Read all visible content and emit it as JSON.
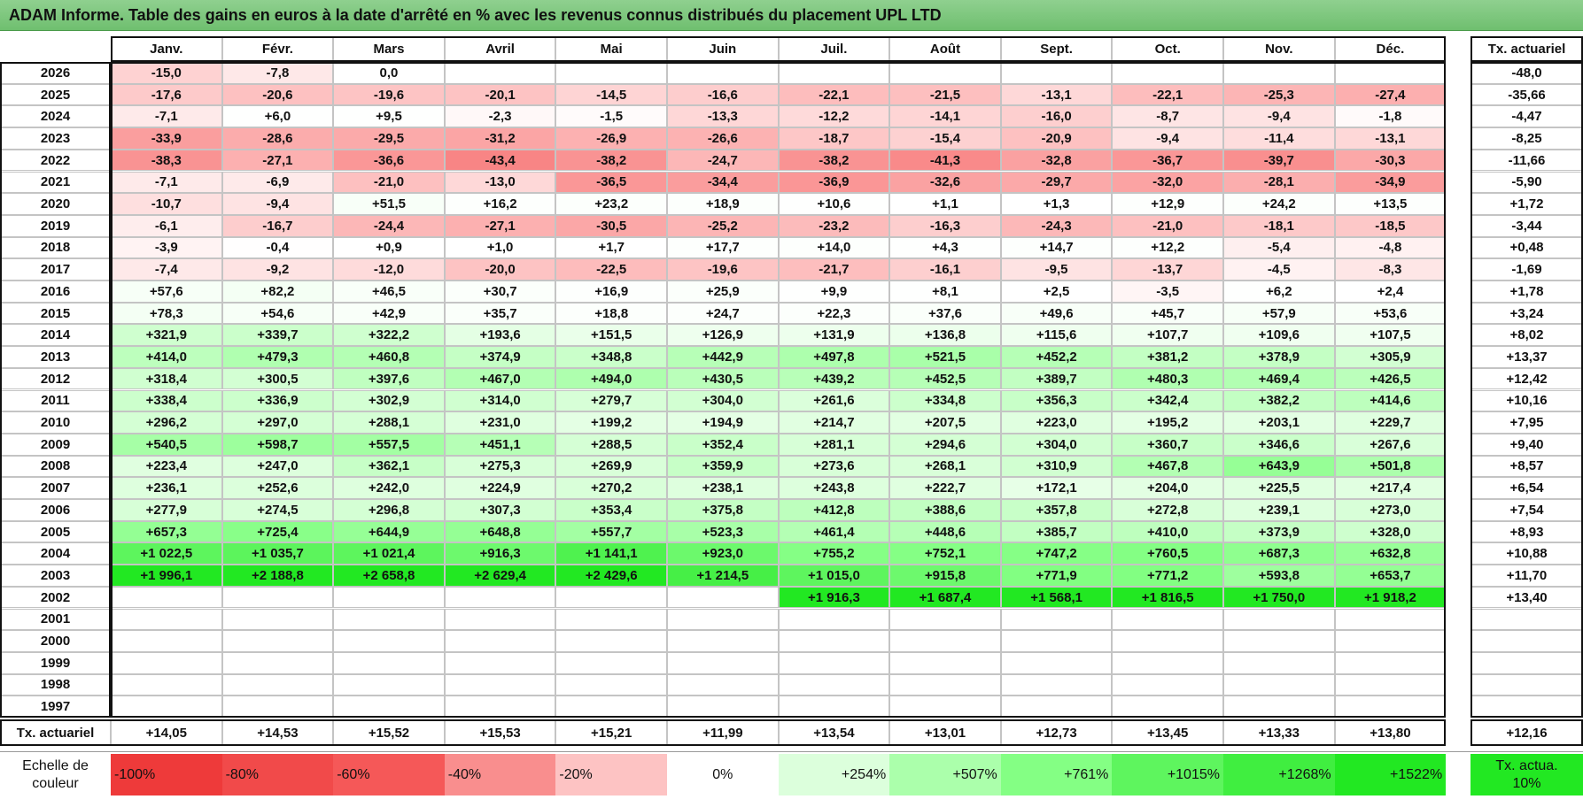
{
  "header": {
    "title": "ADAM Informe. Table des gains en euros à la date d'arrêté en % avec les revenus connus distribués du placement UPL LTD"
  },
  "table": {
    "columns": [
      "Janv.",
      "Févr.",
      "Mars",
      "Avril",
      "Mai",
      "Juin",
      "Juil.",
      "Août",
      "Sept.",
      "Oct.",
      "Nov.",
      "Déc."
    ],
    "rate_column": "Tx. actuariel",
    "rows": [
      {
        "year": "2026",
        "cells": [
          "-15,0",
          "-7,8",
          "0,0",
          null,
          null,
          null,
          null,
          null,
          null,
          null,
          null,
          null
        ],
        "rate": "-48,0"
      },
      {
        "year": "2025",
        "cells": [
          "-17,6",
          "-20,6",
          "-19,6",
          "-20,1",
          "-14,5",
          "-16,6",
          "-22,1",
          "-21,5",
          "-13,1",
          "-22,1",
          "-25,3",
          "-27,4"
        ],
        "rate": "-35,66"
      },
      {
        "year": "2024",
        "cells": [
          "-7,1",
          "+6,0",
          "+9,5",
          "-2,3",
          "-1,5",
          "-13,3",
          "-12,2",
          "-14,1",
          "-16,0",
          "-8,7",
          "-9,4",
          "-1,8"
        ],
        "rate": "-4,47"
      },
      {
        "year": "2023",
        "cells": [
          "-33,9",
          "-28,6",
          "-29,5",
          "-31,2",
          "-26,9",
          "-26,6",
          "-18,7",
          "-15,4",
          "-20,9",
          "-9,4",
          "-11,4",
          "-13,1"
        ],
        "rate": "-8,25"
      },
      {
        "year": "2022",
        "cells": [
          "-38,3",
          "-27,1",
          "-36,6",
          "-43,4",
          "-38,2",
          "-24,7",
          "-38,2",
          "-41,3",
          "-32,8",
          "-36,7",
          "-39,7",
          "-30,3"
        ],
        "rate": "-11,66"
      },
      {
        "year": "2021",
        "cells": [
          "-7,1",
          "-6,9",
          "-21,0",
          "-13,0",
          "-36,5",
          "-34,4",
          "-36,9",
          "-32,6",
          "-29,7",
          "-32,0",
          "-28,1",
          "-34,9"
        ],
        "rate": "-5,90"
      },
      {
        "year": "2020",
        "cells": [
          "-10,7",
          "-9,4",
          "+51,5",
          "+16,2",
          "+23,2",
          "+18,9",
          "+10,6",
          "+1,1",
          "+1,3",
          "+12,9",
          "+24,2",
          "+13,5"
        ],
        "rate": "+1,72"
      },
      {
        "year": "2019",
        "cells": [
          "-6,1",
          "-16,7",
          "-24,4",
          "-27,1",
          "-30,5",
          "-25,2",
          "-23,2",
          "-16,3",
          "-24,3",
          "-21,0",
          "-18,1",
          "-18,5"
        ],
        "rate": "-3,44"
      },
      {
        "year": "2018",
        "cells": [
          "-3,9",
          "-0,4",
          "+0,9",
          "+1,0",
          "+1,7",
          "+17,7",
          "+14,0",
          "+4,3",
          "+14,7",
          "+12,2",
          "-5,4",
          "-4,8"
        ],
        "rate": "+0,48"
      },
      {
        "year": "2017",
        "cells": [
          "-7,4",
          "-9,2",
          "-12,0",
          "-20,0",
          "-22,5",
          "-19,6",
          "-21,7",
          "-16,1",
          "-9,5",
          "-13,7",
          "-4,5",
          "-8,3"
        ],
        "rate": "-1,69"
      },
      {
        "year": "2016",
        "cells": [
          "+57,6",
          "+82,2",
          "+46,5",
          "+30,7",
          "+16,9",
          "+25,9",
          "+9,9",
          "+8,1",
          "+2,5",
          "-3,5",
          "+6,2",
          "+2,4"
        ],
        "rate": "+1,78"
      },
      {
        "year": "2015",
        "cells": [
          "+78,3",
          "+54,6",
          "+42,9",
          "+35,7",
          "+18,8",
          "+24,7",
          "+22,3",
          "+37,6",
          "+49,6",
          "+45,7",
          "+57,9",
          "+53,6"
        ],
        "rate": "+3,24"
      },
      {
        "year": "2014",
        "cells": [
          "+321,9",
          "+339,7",
          "+322,2",
          "+193,6",
          "+151,5",
          "+126,9",
          "+131,9",
          "+136,8",
          "+115,6",
          "+107,7",
          "+109,6",
          "+107,5"
        ],
        "rate": "+8,02"
      },
      {
        "year": "2013",
        "cells": [
          "+414,0",
          "+479,3",
          "+460,8",
          "+374,9",
          "+348,8",
          "+442,9",
          "+497,8",
          "+521,5",
          "+452,2",
          "+381,2",
          "+378,9",
          "+305,9"
        ],
        "rate": "+13,37"
      },
      {
        "year": "2012",
        "cells": [
          "+318,4",
          "+300,5",
          "+397,6",
          "+467,0",
          "+494,0",
          "+430,5",
          "+439,2",
          "+452,5",
          "+389,7",
          "+480,3",
          "+469,4",
          "+426,5"
        ],
        "rate": "+12,42"
      },
      {
        "year": "2011",
        "cells": [
          "+338,4",
          "+336,9",
          "+302,9",
          "+314,0",
          "+279,7",
          "+304,0",
          "+261,6",
          "+334,8",
          "+356,3",
          "+342,4",
          "+382,2",
          "+414,6"
        ],
        "rate": "+10,16"
      },
      {
        "year": "2010",
        "cells": [
          "+296,2",
          "+297,0",
          "+288,1",
          "+231,0",
          "+199,2",
          "+194,9",
          "+214,7",
          "+207,5",
          "+223,0",
          "+195,2",
          "+203,1",
          "+229,7"
        ],
        "rate": "+7,95"
      },
      {
        "year": "2009",
        "cells": [
          "+540,5",
          "+598,7",
          "+557,5",
          "+451,1",
          "+288,5",
          "+352,4",
          "+281,1",
          "+294,6",
          "+304,0",
          "+360,7",
          "+346,6",
          "+267,6"
        ],
        "rate": "+9,40"
      },
      {
        "year": "2008",
        "cells": [
          "+223,4",
          "+247,0",
          "+362,1",
          "+275,3",
          "+269,9",
          "+359,9",
          "+273,6",
          "+268,1",
          "+310,9",
          "+467,8",
          "+643,9",
          "+501,8"
        ],
        "rate": "+8,57"
      },
      {
        "year": "2007",
        "cells": [
          "+236,1",
          "+252,6",
          "+242,0",
          "+224,9",
          "+270,2",
          "+238,1",
          "+243,8",
          "+222,7",
          "+172,1",
          "+204,0",
          "+225,5",
          "+217,4"
        ],
        "rate": "+6,54"
      },
      {
        "year": "2006",
        "cells": [
          "+277,9",
          "+274,5",
          "+296,8",
          "+307,3",
          "+353,4",
          "+375,8",
          "+412,8",
          "+388,6",
          "+357,8",
          "+272,8",
          "+239,1",
          "+273,0"
        ],
        "rate": "+7,54"
      },
      {
        "year": "2005",
        "cells": [
          "+657,3",
          "+725,4",
          "+644,9",
          "+648,8",
          "+557,7",
          "+523,3",
          "+461,4",
          "+448,6",
          "+385,7",
          "+410,0",
          "+373,9",
          "+328,0"
        ],
        "rate": "+8,93"
      },
      {
        "year": "2004",
        "cells": [
          "+1 022,5",
          "+1 035,7",
          "+1 021,4",
          "+916,3",
          "+1 141,1",
          "+923,0",
          "+755,2",
          "+752,1",
          "+747,2",
          "+760,5",
          "+687,3",
          "+632,8"
        ],
        "rate": "+10,88"
      },
      {
        "year": "2003",
        "cells": [
          "+1 996,1",
          "+2 188,8",
          "+2 658,8",
          "+2 629,4",
          "+2 429,6",
          "+1 214,5",
          "+1 015,0",
          "+915,8",
          "+771,9",
          "+771,2",
          "+593,8",
          "+653,7"
        ],
        "rate": "+11,70"
      },
      {
        "year": "2002",
        "cells": [
          null,
          null,
          null,
          null,
          null,
          null,
          "+1 916,3",
          "+1 687,4",
          "+1 568,1",
          "+1 816,5",
          "+1 750,0",
          "+1 918,2"
        ],
        "rate": "+13,40"
      },
      {
        "year": "2001",
        "cells": [
          null,
          null,
          null,
          null,
          null,
          null,
          null,
          null,
          null,
          null,
          null,
          null
        ],
        "rate": null
      },
      {
        "year": "2000",
        "cells": [
          null,
          null,
          null,
          null,
          null,
          null,
          null,
          null,
          null,
          null,
          null,
          null
        ],
        "rate": null
      },
      {
        "year": "1999",
        "cells": [
          null,
          null,
          null,
          null,
          null,
          null,
          null,
          null,
          null,
          null,
          null,
          null
        ],
        "rate": null
      },
      {
        "year": "1998",
        "cells": [
          null,
          null,
          null,
          null,
          null,
          null,
          null,
          null,
          null,
          null,
          null,
          null
        ],
        "rate": null
      },
      {
        "year": "1997",
        "cells": [
          null,
          null,
          null,
          null,
          null,
          null,
          null,
          null,
          null,
          null,
          null,
          null
        ],
        "rate": null
      }
    ],
    "footer": {
      "label": "Tx. actuariel",
      "cells": [
        "+14,05",
        "+14,53",
        "+15,52",
        "+15,53",
        "+15,21",
        "+11,99",
        "+13,54",
        "+13,01",
        "+12,73",
        "+13,45",
        "+13,33",
        "+13,80"
      ],
      "rate": "+12,16"
    }
  },
  "scale": {
    "label": "Echelle de couleur",
    "steps": [
      "-100%",
      "-80%",
      "-60%",
      "-40%",
      "-20%",
      "0%",
      "+254%",
      "+507%",
      "+761%",
      "+1015%",
      "+1268%",
      "+1522%"
    ],
    "rate_label": "Tx. actua. 10%"
  }
}
